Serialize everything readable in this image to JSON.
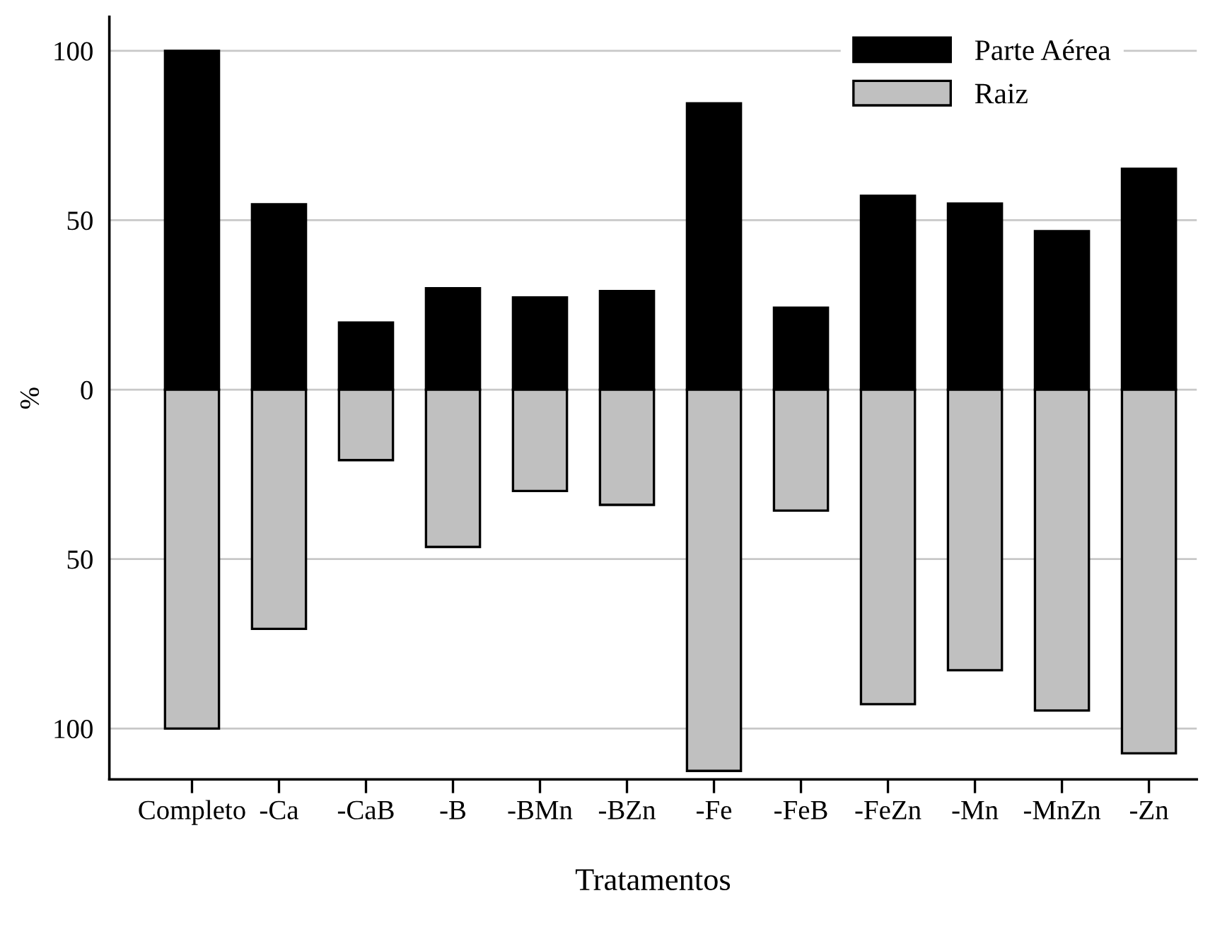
{
  "chart_data": {
    "type": "bar",
    "xlabel": "Tratamentos",
    "ylabel": "%",
    "categories": [
      "Completo",
      "-Ca",
      "-CaB",
      "-B",
      "-BMn",
      "-BZn",
      "-Fe",
      "-FeB",
      "-FeZn",
      "-Mn",
      "-MnZn",
      "-Zn"
    ],
    "series": [
      {
        "name": "Parte Aérea",
        "color": "#000000",
        "values": [
          100,
          54.7,
          19.8,
          29.9,
          27.2,
          29.1,
          84.5,
          24.2,
          57.2,
          54.9,
          46.8,
          65.2
        ]
      },
      {
        "name": "Raiz",
        "color": "#c0c0c0",
        "values": [
          -100,
          -70.6,
          -20.8,
          -46.4,
          -29.9,
          -34,
          -112.5,
          -35.7,
          -92.8,
          -82.8,
          -94.7,
          -107.3
        ]
      }
    ],
    "ylim": [
      -115,
      110
    ],
    "yticks": [
      {
        "value": -100,
        "label": "100"
      },
      {
        "value": -50,
        "label": "50"
      },
      0,
      50,
      100
    ],
    "grid": "y",
    "legend": "top right",
    "stacked": true
  }
}
